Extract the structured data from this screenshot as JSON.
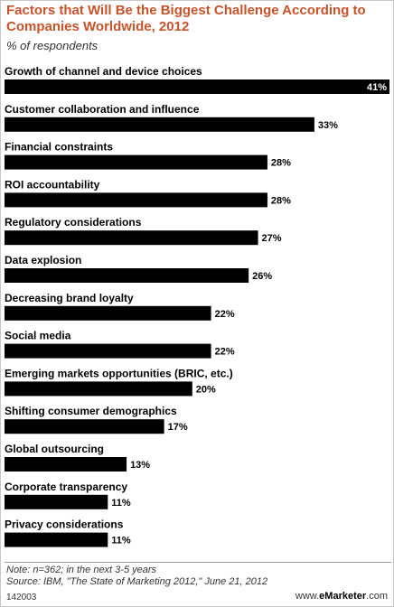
{
  "chart_data": {
    "type": "bar",
    "orientation": "horizontal",
    "title": "Factors that Will Be the Biggest Challenge According to Companies Worldwide, 2012",
    "subtitle": "% of respondents",
    "categories": [
      "Growth of channel and device choices",
      "Customer collaboration and influence",
      "Financial constraints",
      "ROI accountability",
      "Regulatory considerations",
      "Data explosion",
      "Decreasing brand loyalty",
      "Social media",
      "Emerging markets opportunities (BRIC, etc.)",
      "Shifting consumer demographics",
      "Global outsourcing",
      "Corporate transparency",
      "Privacy considerations"
    ],
    "values": [
      41,
      33,
      28,
      28,
      27,
      26,
      22,
      22,
      20,
      17,
      13,
      11,
      11
    ],
    "value_labels": [
      "41%",
      "33%",
      "28%",
      "28%",
      "27%",
      "26%",
      "22%",
      "22%",
      "20%",
      "17%",
      "13%",
      "11%",
      "11%"
    ],
    "xlim": [
      0,
      41
    ],
    "grid": false,
    "bar_color": "#000000",
    "title_color": "#c8532a"
  },
  "footer": {
    "note": "Note: n=362; in the next 3-5 years",
    "source": "Source: IBM, \"The State of Marketing 2012,\" June 21, 2012",
    "code": "142003",
    "brand_prefix": "www.",
    "brand_name": "eMarketer",
    "brand_suffix": ".com"
  }
}
